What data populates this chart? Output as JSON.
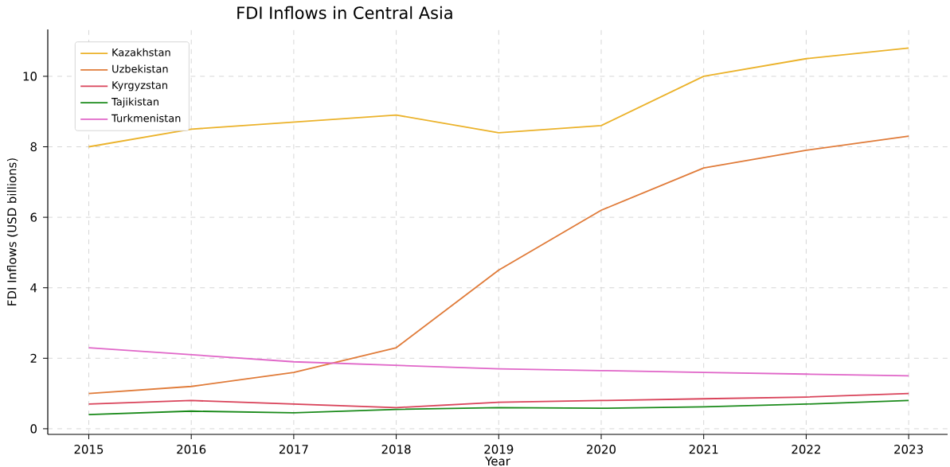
{
  "chart_data": {
    "type": "line",
    "title": "FDI Inflows in Central Asia",
    "xlabel": "Year",
    "ylabel": "FDI Inflows (USD billions)",
    "x": [
      2015,
      2016,
      2017,
      2018,
      2019,
      2020,
      2021,
      2022,
      2023
    ],
    "series": [
      {
        "name": "Kazakhstan",
        "color": "#ebb22a",
        "values": [
          8.0,
          8.5,
          8.7,
          8.9,
          8.4,
          8.6,
          10.0,
          10.5,
          10.8
        ]
      },
      {
        "name": "Uzbekistan",
        "color": "#e07b39",
        "values": [
          1.0,
          1.2,
          1.6,
          2.3,
          4.5,
          6.2,
          7.4,
          7.9,
          8.3
        ]
      },
      {
        "name": "Kyrgyzstan",
        "color": "#d9435a",
        "values": [
          0.7,
          0.8,
          0.7,
          0.6,
          0.75,
          0.8,
          0.85,
          0.9,
          1.0
        ]
      },
      {
        "name": "Tajikistan",
        "color": "#1a8a1a",
        "values": [
          0.4,
          0.5,
          0.45,
          0.55,
          0.6,
          0.58,
          0.62,
          0.7,
          0.8
        ]
      },
      {
        "name": "Turkmenistan",
        "color": "#e066c8",
        "values": [
          2.3,
          2.1,
          1.9,
          1.8,
          1.7,
          1.65,
          1.6,
          1.55,
          1.5
        ]
      }
    ],
    "xlim": [
      2014.6,
      2023.38
    ],
    "ylim": [
      -0.16,
      11.33
    ],
    "xticks": [
      2015,
      2016,
      2017,
      2018,
      2019,
      2020,
      2021,
      2022,
      2023
    ],
    "yticks": [
      0,
      2,
      4,
      6,
      8,
      10
    ],
    "grid": true,
    "legend": "top left",
    "marker": "none",
    "line_style": "solid"
  }
}
